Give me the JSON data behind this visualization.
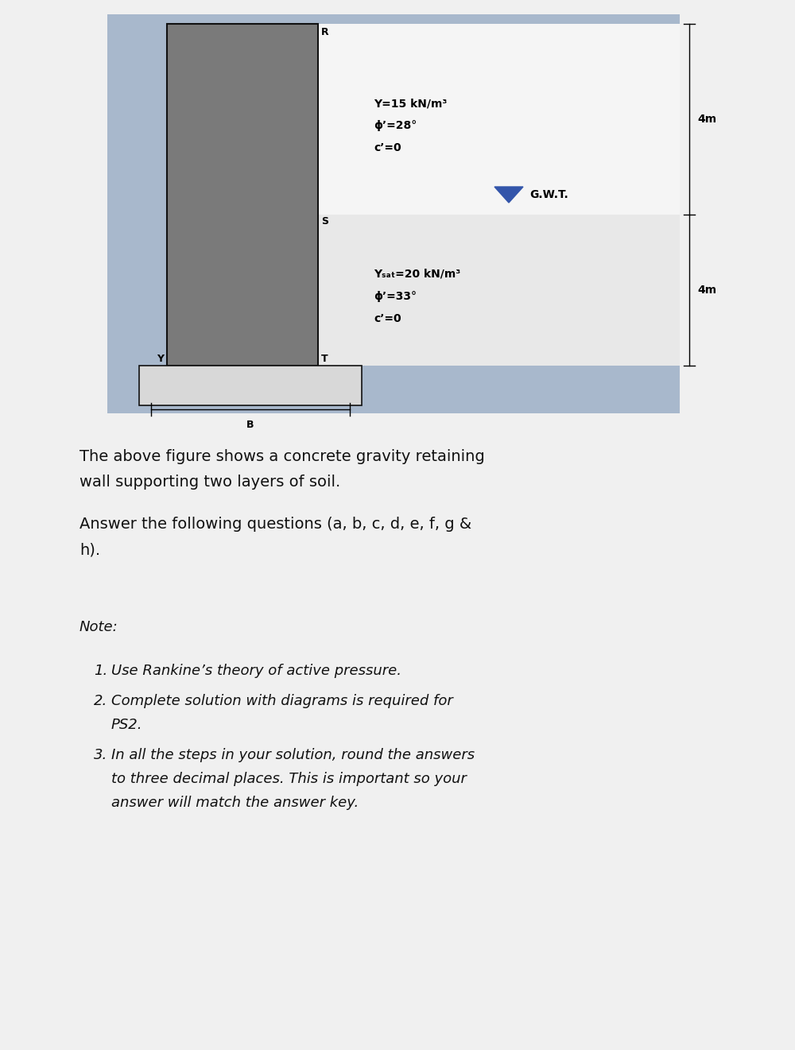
{
  "fig_width": 10.0,
  "fig_height": 13.21,
  "dpi": 100,
  "bg_color": "#f0f0f0",
  "diagram_bg": "#a8b8cc",
  "upper_soil_bg": "#f5f5f5",
  "lower_soil_bg": "#e8e8e8",
  "wall_face_color": "#7a7a7a",
  "wall_edge_color": "#111111",
  "base_face_color": "#d8d8d8",
  "base_edge_color": "#111111",
  "gwt_color": "#3355aa",
  "upper_layer_label1": "Y=15 kN/m³",
  "upper_layer_label2": "ϕ’=28°",
  "upper_layer_label3": "c’=0",
  "lower_layer_label1": "Yₛₐₜ=20 kN/m³",
  "lower_layer_label2": "ϕ’=33°",
  "lower_layer_label3": "c’=0",
  "gwt_label": "G.W.T.",
  "dim_upper": "4m",
  "dim_lower": "4m",
  "label_R": "R",
  "label_S": "S",
  "label_T": "T",
  "label_Y": "Y",
  "label_B": "B",
  "note1": "Use Rankine’s theory of active pressure.",
  "note2_line1": "Complete solution with diagrams is required for",
  "note2_line2": "PS2.",
  "note3_line1": "In all the steps in your solution, round the answers",
  "note3_line2": "to three decimal places. This is important so your",
  "note3_line3": "answer will match the answer key."
}
